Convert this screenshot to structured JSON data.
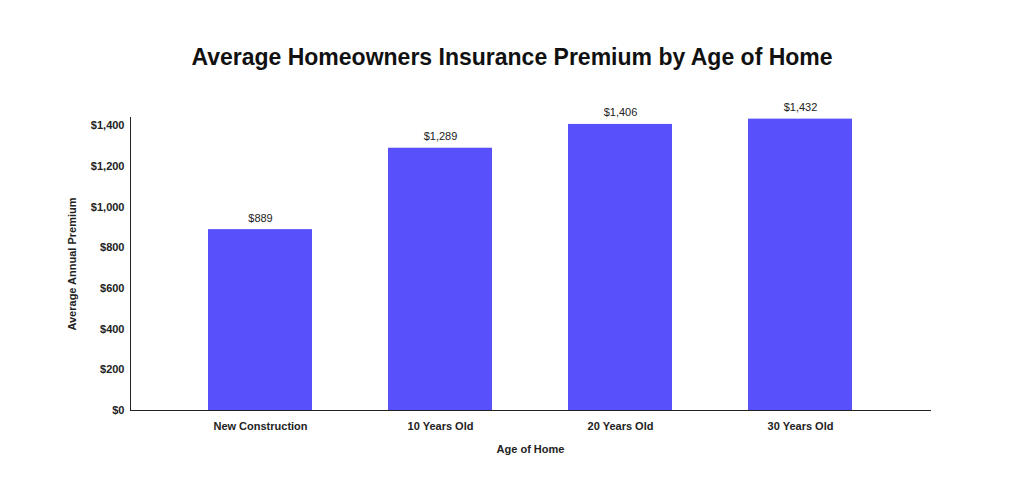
{
  "chart_data": {
    "type": "bar",
    "title": "Average Homeowners Insurance Premium by Age of Home",
    "xlabel": "Age of Home",
    "ylabel": "Average Annual Premium",
    "categories": [
      "New Construction",
      "10 Years Old",
      "20 Years Old",
      "30 Years Old"
    ],
    "values": [
      889,
      1289,
      1406,
      1432
    ],
    "value_labels": [
      "$889",
      "$1,289",
      "$1,406",
      "$1,432"
    ],
    "data_labels": true,
    "color": "#5850fa",
    "ylim": [
      0,
      1440
    ],
    "yticks": [
      {
        "value": 0,
        "label": "$0"
      },
      {
        "value": 200,
        "label": "$200"
      },
      {
        "value": 400,
        "label": "$400"
      },
      {
        "value": 600,
        "label": "$600"
      },
      {
        "value": 800,
        "label": "$800"
      },
      {
        "value": 1000,
        "label": "$1,000"
      },
      {
        "value": 1200,
        "label": "$1,200"
      },
      {
        "value": 1400,
        "label": "$1,400"
      }
    ],
    "grid": false
  }
}
